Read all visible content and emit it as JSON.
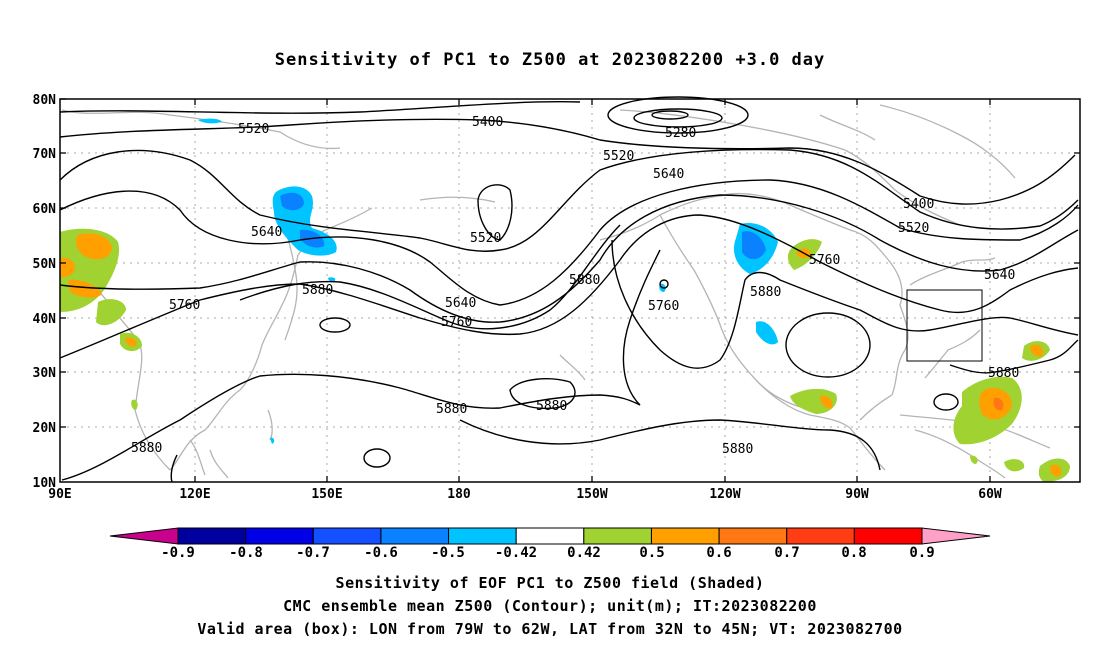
{
  "title": "Sensitivity of PC1 to Z500 at 2023082200 +3.0 day",
  "axes": {
    "lat_ticks": [
      "80N",
      "70N",
      "60N",
      "50N",
      "40N",
      "30N",
      "20N",
      "10N"
    ],
    "lon_ticks": [
      "90E",
      "120E",
      "150E",
      "180",
      "150W",
      "120W",
      "90W",
      "60W"
    ]
  },
  "contour_labels": [
    {
      "text": "5520"
    },
    {
      "text": "5400"
    },
    {
      "text": "5280"
    },
    {
      "text": "5520"
    },
    {
      "text": "5640"
    },
    {
      "text": "5400"
    },
    {
      "text": "5520"
    },
    {
      "text": "5640"
    },
    {
      "text": "5520"
    },
    {
      "text": "5760"
    },
    {
      "text": "5640"
    },
    {
      "text": "5760"
    },
    {
      "text": "5880"
    },
    {
      "text": "5640"
    },
    {
      "text": "5760"
    },
    {
      "text": "5880"
    },
    {
      "text": "5760"
    },
    {
      "text": "5880"
    },
    {
      "text": "5880"
    },
    {
      "text": "5880"
    },
    {
      "text": "5880"
    },
    {
      "text": "5880"
    },
    {
      "text": "5880"
    }
  ],
  "colorbar": {
    "labels": [
      "-0.9",
      "-0.8",
      "-0.7",
      "-0.6",
      "-0.5",
      "-0.42",
      "0.42",
      "0.5",
      "0.6",
      "0.7",
      "0.8",
      "0.9"
    ],
    "colors": [
      "#c8008c",
      "#00009e",
      "#0000e6",
      "#1450ff",
      "#0a82ff",
      "#00c4ff",
      "#ffffff",
      "#a0d232",
      "#ffa000",
      "#ff7814",
      "#ff3c14",
      "#ff0000",
      "#ffa0c8"
    ]
  },
  "captions": [
    "Sensitivity of EOF PC1 to Z500 field (Shaded)",
    "CMC ensemble mean Z500 (Contour); unit(m); IT:2023082200",
    "Valid area (box): LON from 79W to 62W, LAT from 32N to 45N; VT: 2023082700"
  ]
}
